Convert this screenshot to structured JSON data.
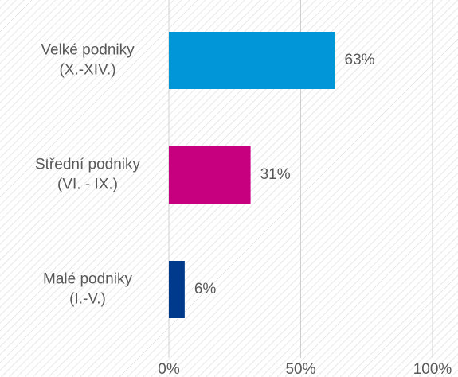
{
  "chart_data": {
    "type": "bar",
    "orientation": "horizontal",
    "categories": [
      [
        "Velké podniky",
        "(X.-XIV.)"
      ],
      [
        "Střední podniky",
        "(VI. - IX.)"
      ],
      [
        "Malé podniky",
        "(I.-V.)"
      ]
    ],
    "values": [
      63,
      31,
      6
    ],
    "value_labels": [
      "63%",
      "31%",
      "6%"
    ],
    "colors": [
      "#0096d8",
      "#c6007e",
      "#003a8c"
    ],
    "xlim": [
      0,
      100
    ],
    "xticks": [
      {
        "value": 0,
        "label": "0%"
      },
      {
        "value": 50,
        "label": "50%"
      },
      {
        "value": 100,
        "label": "100%"
      }
    ],
    "grid": true
  }
}
